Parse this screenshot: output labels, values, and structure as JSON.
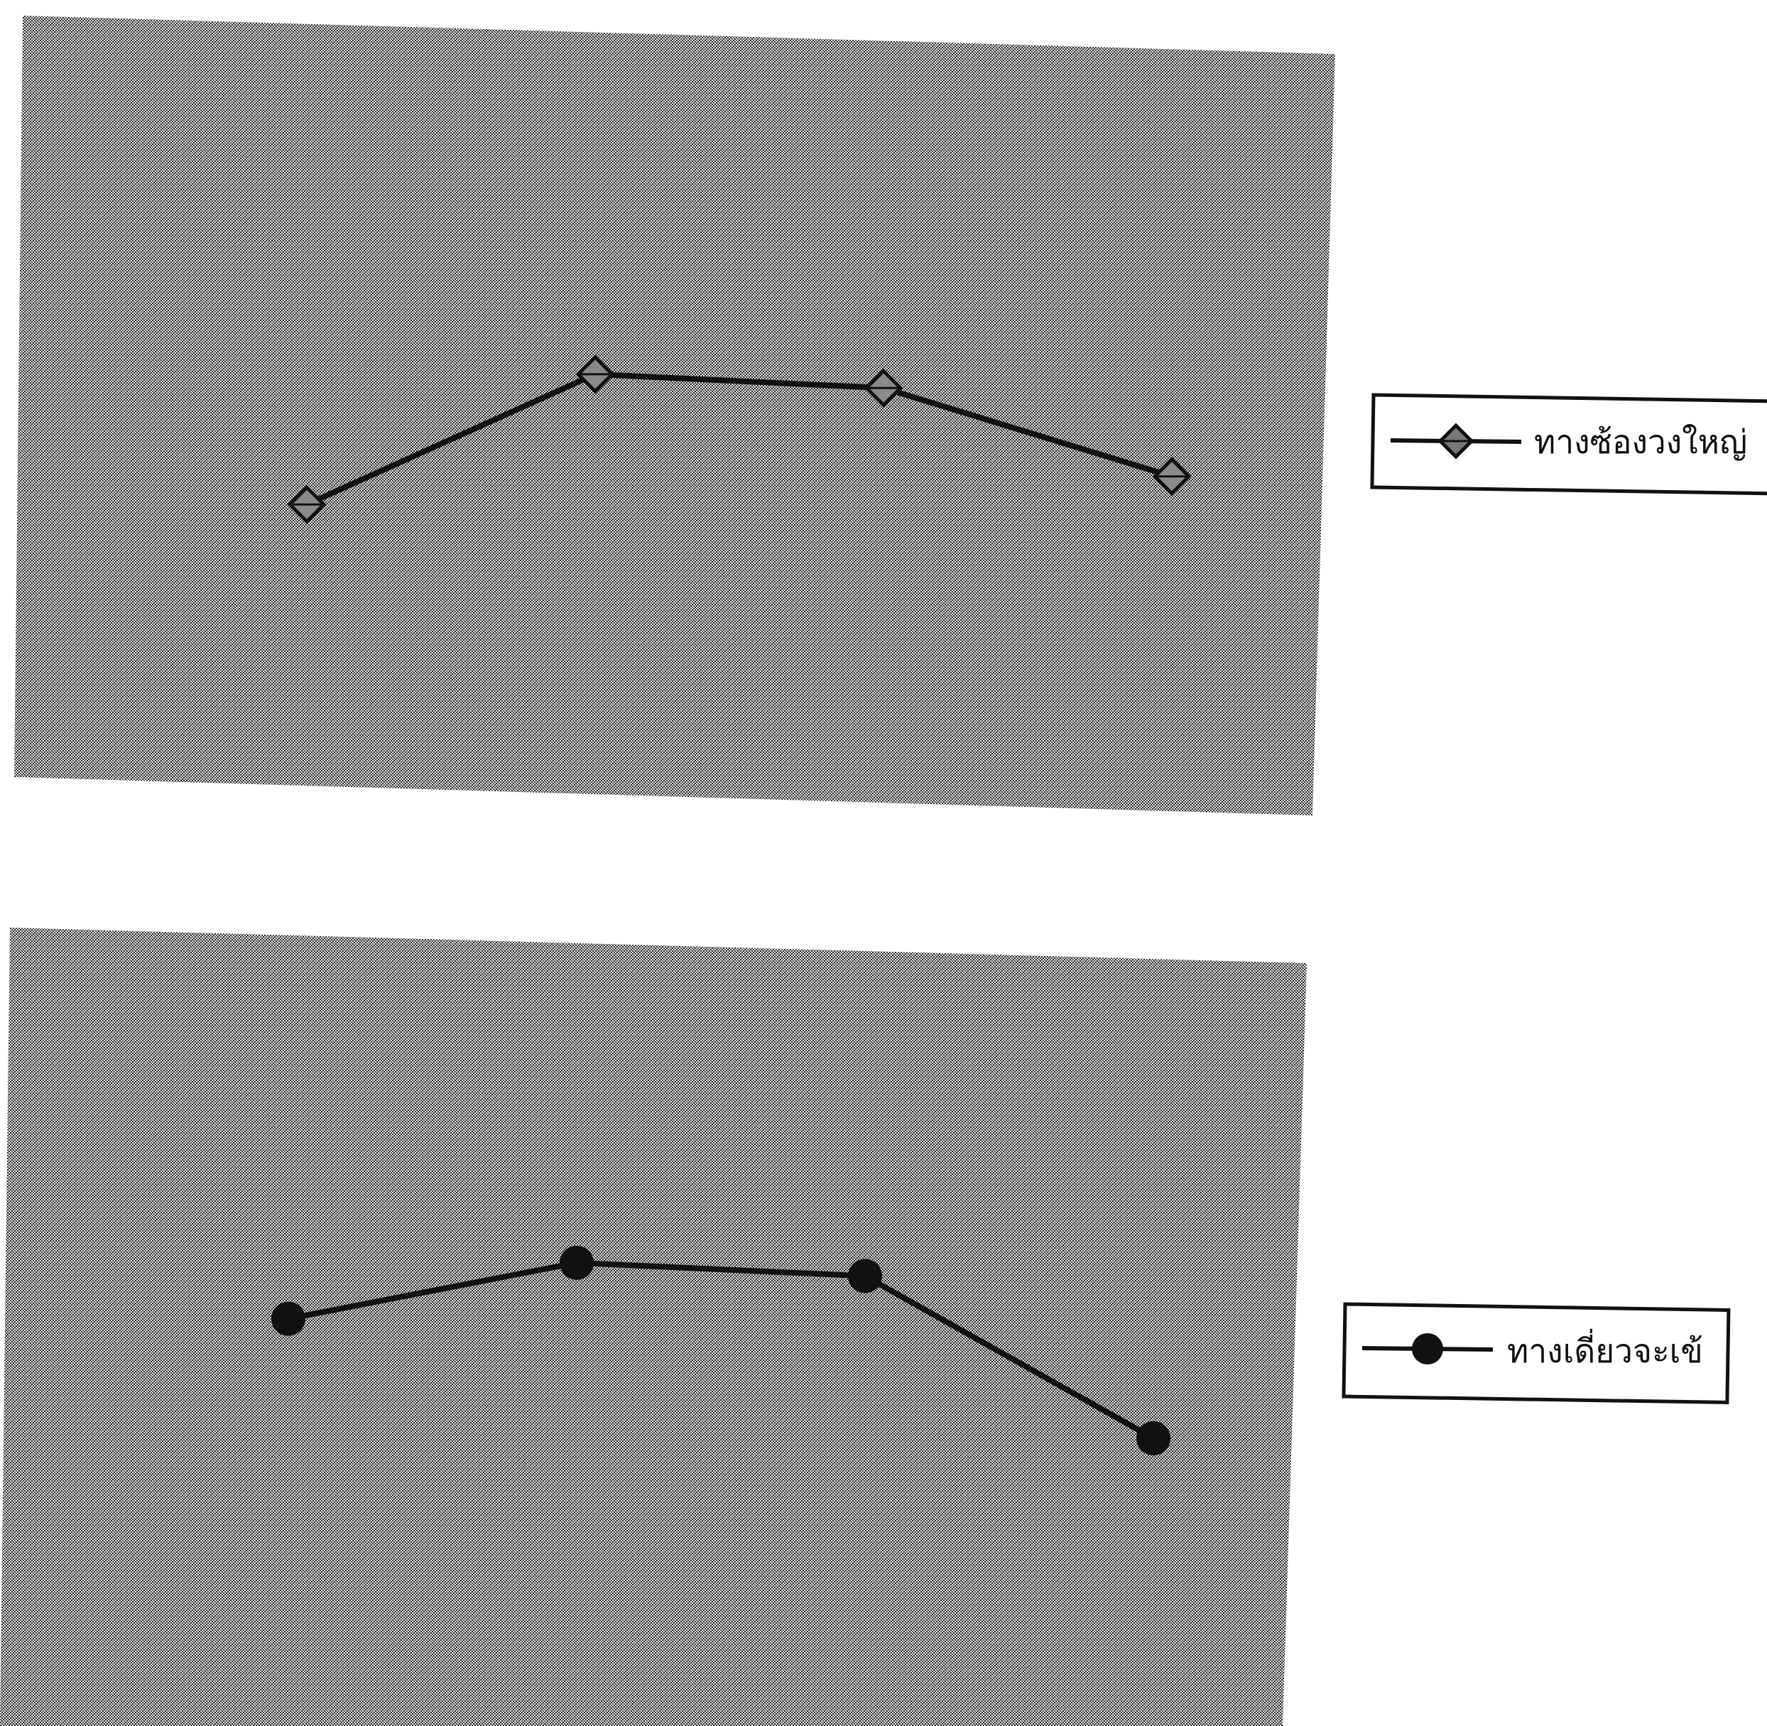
{
  "chart_data": [
    {
      "type": "line",
      "x": [
        1,
        2,
        3,
        4
      ],
      "series": [
        {
          "name": "ทางซ้องวงใหญ่",
          "marker": "diamond",
          "color": "#111111",
          "values": [
            3.0,
            4.3,
            4.25,
            3.5
          ]
        }
      ],
      "ylim": [
        0,
        7.5
      ],
      "grid": false,
      "legend": "right"
    },
    {
      "type": "line",
      "x": [
        1,
        2,
        3,
        4
      ],
      "series": [
        {
          "name": "ทางเดี่ยวจะเข้",
          "marker": "circle",
          "color": "#111111",
          "values": [
            3.9,
            4.5,
            4.45,
            3.0
          ]
        }
      ],
      "ylim": [
        0,
        7.5
      ],
      "grid": false,
      "legend": "right"
    }
  ]
}
